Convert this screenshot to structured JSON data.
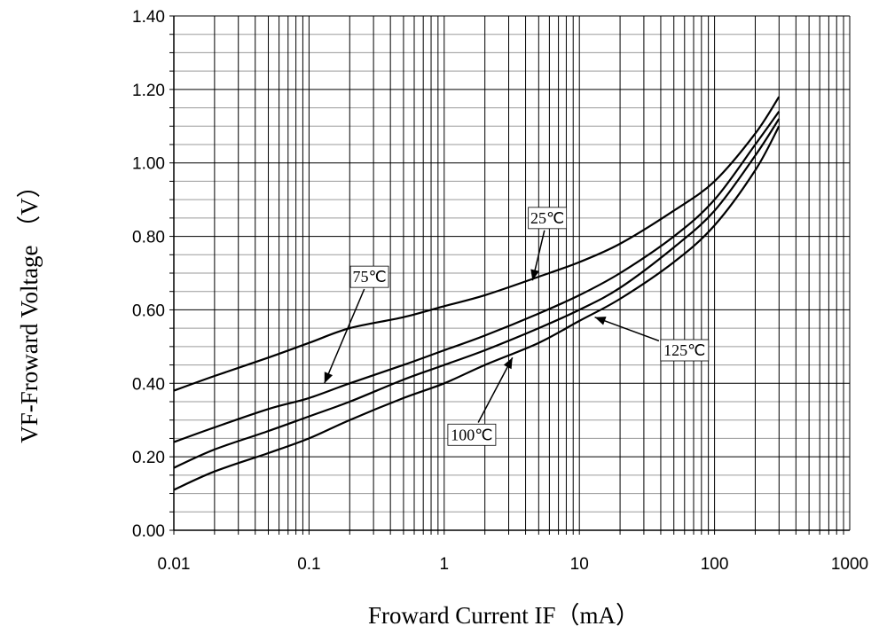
{
  "chart_data": {
    "type": "line",
    "xlabel": "Froward Current IF（mA）",
    "ylabel": "VF-Froward Voltage （V）",
    "x_scale": "log",
    "xlim": [
      0.01,
      1000
    ],
    "ylim": [
      0,
      1.4
    ],
    "x_ticks": [
      "0.01",
      "0.1",
      "1",
      "10",
      "100",
      "1000"
    ],
    "y_ticks": [
      "0.00",
      "0.20",
      "0.40",
      "0.60",
      "0.80",
      "1.00",
      "1.20",
      "1.40"
    ],
    "grid": true,
    "series": [
      {
        "name": "25℃",
        "x": [
          0.01,
          0.02,
          0.05,
          0.1,
          0.2,
          0.5,
          1,
          2,
          5,
          10,
          20,
          50,
          100,
          200,
          300
        ],
        "y": [
          0.38,
          0.42,
          0.47,
          0.51,
          0.55,
          0.58,
          0.61,
          0.64,
          0.69,
          0.73,
          0.78,
          0.87,
          0.95,
          1.08,
          1.18
        ]
      },
      {
        "name": "75℃",
        "x": [
          0.01,
          0.02,
          0.05,
          0.1,
          0.2,
          0.5,
          1,
          2,
          5,
          10,
          20,
          50,
          100,
          200,
          300
        ],
        "y": [
          0.24,
          0.28,
          0.33,
          0.36,
          0.4,
          0.45,
          0.49,
          0.53,
          0.59,
          0.64,
          0.7,
          0.8,
          0.9,
          1.05,
          1.14
        ]
      },
      {
        "name": "100℃",
        "x": [
          0.01,
          0.02,
          0.05,
          0.1,
          0.2,
          0.5,
          1,
          2,
          5,
          10,
          20,
          50,
          100,
          200,
          300
        ],
        "y": [
          0.17,
          0.22,
          0.27,
          0.31,
          0.35,
          0.41,
          0.45,
          0.49,
          0.55,
          0.6,
          0.66,
          0.77,
          0.87,
          1.02,
          1.12
        ]
      },
      {
        "name": "125℃",
        "x": [
          0.01,
          0.02,
          0.05,
          0.1,
          0.2,
          0.5,
          1,
          2,
          5,
          10,
          20,
          50,
          100,
          200,
          300
        ],
        "y": [
          0.11,
          0.16,
          0.21,
          0.25,
          0.3,
          0.36,
          0.4,
          0.45,
          0.51,
          0.57,
          0.63,
          0.73,
          0.83,
          0.98,
          1.1
        ]
      }
    ],
    "annotations": [
      {
        "text": "25℃",
        "series": "25℃",
        "label_at": [
          5.8,
          0.85
        ],
        "arrow_to": [
          4.5,
          0.68
        ]
      },
      {
        "text": "75℃",
        "series": "75℃",
        "label_at": [
          0.28,
          0.69
        ],
        "arrow_to": [
          0.13,
          0.4
        ]
      },
      {
        "text": "100℃",
        "series": "100℃",
        "label_at": [
          1.6,
          0.26
        ],
        "arrow_to": [
          3.2,
          0.47
        ]
      },
      {
        "text": "125℃",
        "series": "125℃",
        "label_at": [
          60,
          0.49
        ],
        "arrow_to": [
          13,
          0.58
        ]
      }
    ]
  }
}
